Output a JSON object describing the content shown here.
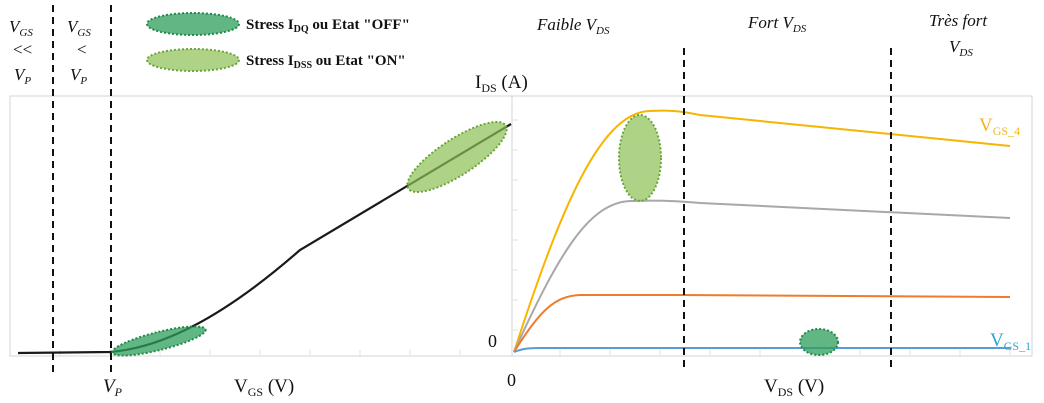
{
  "regions_left": {
    "r1": {
      "v": "V",
      "sub": "GS",
      "op": "<<",
      "vp": "V",
      "vp_sub": "P"
    },
    "r2": {
      "v": "V",
      "sub": "GS",
      "op": "<",
      "vp": "V",
      "vp_sub": "P"
    }
  },
  "regions_right": {
    "faible": {
      "text": "Faible V",
      "sub": "DS"
    },
    "fort": {
      "text": "Fort V",
      "sub": "DS"
    },
    "tres_fort": {
      "line1": "Très fort",
      "v": "V",
      "sub": "DS"
    }
  },
  "legend": {
    "off": {
      "pre": "Stress I",
      "sub": "DQ",
      "post": " ou Etat \"OFF\"",
      "color": "#2e9e5b"
    },
    "on": {
      "pre": "Stress I",
      "sub": "DSS",
      "post": " ou Etat \"ON\"",
      "color": "#8cc152"
    }
  },
  "left_plot": {
    "xlabel": {
      "v": "V",
      "sub": "GS",
      "unit": " (V)"
    },
    "vp_label": {
      "v": "V",
      "sub": "P"
    }
  },
  "right_plot": {
    "ylabel": {
      "v": "I",
      "sub": "DS",
      "unit": " (A)"
    },
    "xlabel": {
      "v": "V",
      "sub": "DS",
      "unit": " (V)"
    },
    "origin_x": "0",
    "origin_y": "0",
    "curve_labels": {
      "top": {
        "v": "V",
        "sub": "GS_4",
        "color": "#f2b61d"
      },
      "bottom": {
        "v": "V",
        "sub": "GS_1",
        "color": "#2aa6d6"
      }
    },
    "curve_colors": [
      "#f7b500",
      "#a8a8a8",
      "#f07b2c",
      "#5b9bd5"
    ]
  }
}
